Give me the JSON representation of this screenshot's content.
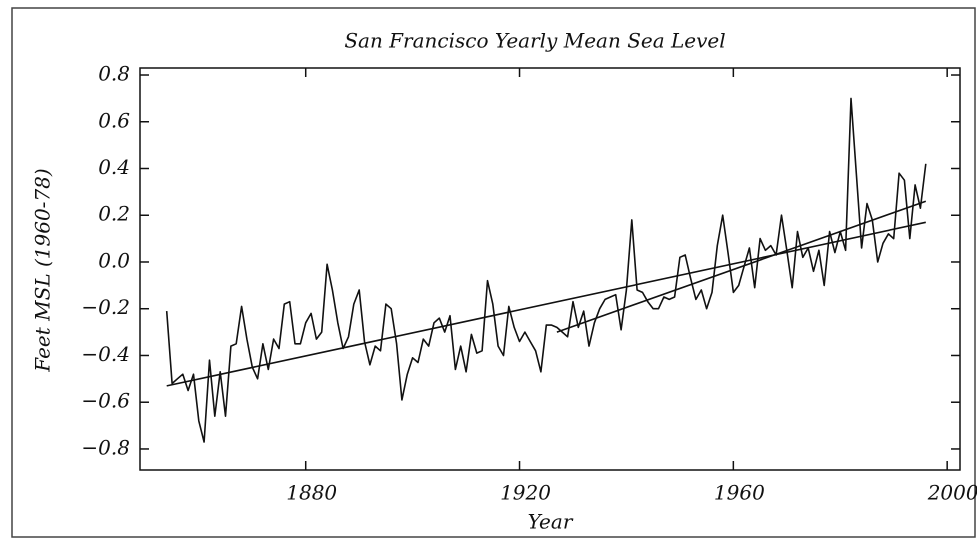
{
  "chart_data": {
    "type": "line",
    "title": "San Francisco Yearly Mean Sea Level",
    "xlabel": "Year",
    "ylabel": "Feet MSL (1960-78)",
    "x": [
      1854,
      1855,
      1856,
      1857,
      1858,
      1859,
      1860,
      1861,
      1862,
      1863,
      1864,
      1865,
      1866,
      1867,
      1868,
      1869,
      1870,
      1871,
      1872,
      1873,
      1874,
      1875,
      1876,
      1877,
      1878,
      1879,
      1880,
      1881,
      1882,
      1883,
      1884,
      1885,
      1886,
      1887,
      1888,
      1889,
      1890,
      1891,
      1892,
      1893,
      1894,
      1895,
      1896,
      1897,
      1898,
      1899,
      1900,
      1901,
      1902,
      1903,
      1904,
      1905,
      1906,
      1907,
      1908,
      1909,
      1910,
      1911,
      1912,
      1913,
      1914,
      1915,
      1916,
      1917,
      1918,
      1919,
      1920,
      1921,
      1922,
      1923,
      1924,
      1925,
      1926,
      1927,
      1928,
      1929,
      1930,
      1931,
      1932,
      1933,
      1934,
      1935,
      1936,
      1937,
      1938,
      1939,
      1940,
      1941,
      1942,
      1943,
      1944,
      1945,
      1946,
      1947,
      1948,
      1949,
      1950,
      1951,
      1952,
      1953,
      1954,
      1955,
      1956,
      1957,
      1958,
      1959,
      1960,
      1961,
      1962,
      1963,
      1964,
      1965,
      1966,
      1967,
      1968,
      1969,
      1970,
      1971,
      1972,
      1973,
      1974,
      1975,
      1976,
      1977,
      1978,
      1979,
      1980,
      1981,
      1982,
      1983,
      1984,
      1985,
      1986,
      1987,
      1988,
      1989,
      1990,
      1991,
      1992,
      1993,
      1994,
      1995,
      1996
    ],
    "series": [
      {
        "color": "#111111",
        "values": [
          -0.21,
          -0.52,
          -0.5,
          -0.48,
          -0.55,
          -0.48,
          -0.68,
          -0.77,
          -0.42,
          -0.66,
          -0.47,
          -0.66,
          -0.36,
          -0.35,
          -0.19,
          -0.33,
          -0.45,
          -0.5,
          -0.35,
          -0.46,
          -0.33,
          -0.37,
          -0.18,
          -0.17,
          -0.35,
          -0.35,
          -0.26,
          -0.22,
          -0.33,
          -0.3,
          -0.01,
          -0.12,
          -0.26,
          -0.37,
          -0.32,
          -0.18,
          -0.12,
          -0.34,
          -0.44,
          -0.36,
          -0.38,
          -0.18,
          -0.2,
          -0.35,
          -0.59,
          -0.48,
          -0.41,
          -0.43,
          -0.33,
          -0.36,
          -0.26,
          -0.24,
          -0.3,
          -0.23,
          -0.46,
          -0.36,
          -0.47,
          -0.31,
          -0.39,
          -0.38,
          -0.08,
          -0.18,
          -0.36,
          -0.4,
          -0.19,
          -0.28,
          -0.34,
          -0.3,
          -0.34,
          -0.38,
          -0.47,
          -0.27,
          -0.27,
          -0.28,
          -0.3,
          -0.32,
          -0.17,
          -0.28,
          -0.21,
          -0.36,
          -0.26,
          -0.2,
          -0.16,
          -0.15,
          -0.14,
          -0.29,
          -0.12,
          0.18,
          -0.12,
          -0.13,
          -0.17,
          -0.2,
          -0.2,
          -0.15,
          -0.16,
          -0.15,
          0.02,
          0.03,
          -0.07,
          -0.16,
          -0.12,
          -0.2,
          -0.13,
          0.07,
          0.2,
          0.04,
          -0.13,
          -0.1,
          -0.02,
          0.06,
          -0.11,
          0.1,
          0.05,
          0.07,
          0.03,
          0.2,
          0.05,
          -0.11,
          0.13,
          0.02,
          0.06,
          -0.04,
          0.05,
          -0.1,
          0.13,
          0.04,
          0.13,
          0.05,
          0.7,
          0.38,
          0.06,
          0.25,
          0.18,
          0.0,
          0.08,
          0.12,
          0.1,
          0.38,
          0.35,
          0.1,
          0.33,
          0.23,
          0.42
        ]
      },
      {
        "color": "#111111",
        "x": [
          1854,
          1996
        ],
        "values": [
          -0.53,
          0.17
        ]
      },
      {
        "color": "#111111",
        "x": [
          1927,
          1996
        ],
        "values": [
          -0.3,
          0.26
        ]
      }
    ],
    "xlim": [
      1849,
      2002.4
    ],
    "ylim": [
      -0.89,
      0.83
    ],
    "xticks": [
      1880,
      1920,
      1960,
      2000
    ],
    "yticks": [
      0.8,
      0.6,
      0.4,
      0.2,
      {
        "value": 0,
        "label": "0.0"
      },
      {
        "value": -0.2,
        "label": "−0.2"
      },
      {
        "value": -0.4,
        "label": "−0.4"
      },
      {
        "value": -0.6,
        "label": "−0.6"
      },
      {
        "value": -0.8,
        "label": "−0.8"
      }
    ]
  }
}
